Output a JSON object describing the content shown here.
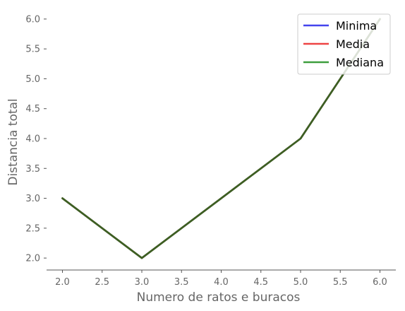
{
  "chart_data": {
    "type": "line",
    "title": "",
    "xlabel": "Numero de ratos e buracos",
    "ylabel": "Distancia total",
    "x": [
      2.0,
      3.0,
      4.0,
      5.0,
      6.0
    ],
    "xlim": [
      1.8,
      6.2
    ],
    "ylim": [
      1.8,
      6.2
    ],
    "xticks": [
      "2.0",
      "2.5",
      "3.0",
      "3.5",
      "4.0",
      "4.5",
      "5.0",
      "5.5",
      "6.0"
    ],
    "yticks": [
      "2.0",
      "2.5",
      "3.0",
      "3.5",
      "4.0",
      "4.5",
      "5.0",
      "5.5",
      "6.0"
    ],
    "grid": false,
    "legend_position": "top-right",
    "series": [
      {
        "name": "Minima",
        "values": [
          3.0,
          2.0,
          3.0,
          4.0,
          6.0
        ],
        "color": "#4444ee"
      },
      {
        "name": "Media",
        "values": [
          3.0,
          2.0,
          3.0,
          4.0,
          6.0
        ],
        "color": "#ee4444"
      },
      {
        "name": "Mediana",
        "values": [
          3.0,
          2.0,
          3.0,
          4.0,
          6.0
        ],
        "color": "#3e9e3e"
      }
    ],
    "overlap_color": "#3b5a1f"
  }
}
